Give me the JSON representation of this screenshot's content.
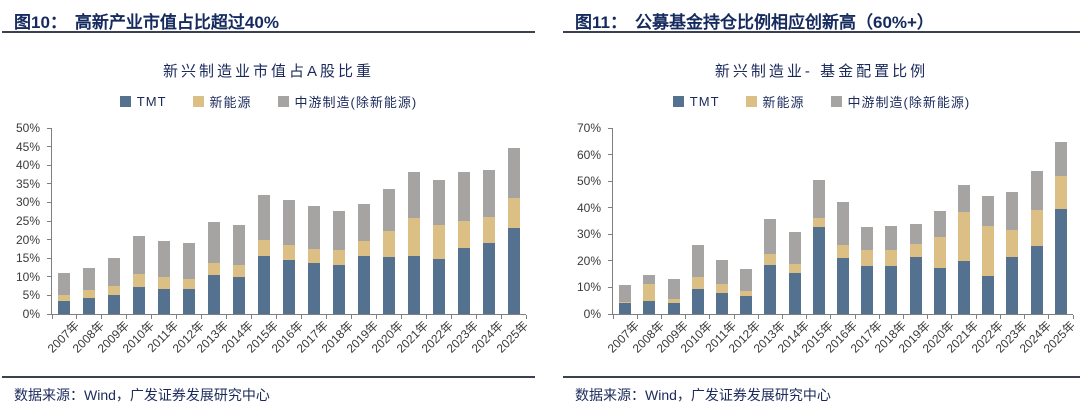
{
  "panels": [
    {
      "label": "图10：",
      "title": "高新产业市值占比超过40%"
    },
    {
      "label": "图11：",
      "title": "公募基金持仓比例相应创新高（60%+）"
    }
  ],
  "footer": {
    "source_text": "数据来源：Wind，广发证券发展研究中心"
  },
  "colors": {
    "tmt": "#54718F",
    "new_energy": "#DCBF85",
    "midstream": "#A5A4A3",
    "axis": "#7F7F7F",
    "navy_text": "#1B2A5B"
  },
  "chart_data": [
    {
      "type": "bar",
      "stacked": true,
      "title": "新兴制造业市值占A股比重",
      "legend_position": "top",
      "grid": false,
      "ylim": [
        0,
        50
      ],
      "ytick_step": 5,
      "categories": [
        "2007年",
        "2008年",
        "2009年",
        "2010年",
        "2011年",
        "2012年",
        "2013年",
        "2014年",
        "2015年",
        "2016年",
        "2017年",
        "2018年",
        "2019年",
        "2020年",
        "2021年",
        "2022年",
        "2023年",
        "2024年",
        "2025年"
      ],
      "series": [
        {
          "name": "TMT",
          "color": "#54718F",
          "values": [
            3.6,
            4.4,
            5.1,
            7.2,
            6.8,
            6.8,
            10.4,
            10.0,
            15.5,
            14.5,
            13.8,
            13.1,
            15.7,
            15.3,
            15.7,
            14.7,
            17.8,
            19.1,
            23.0
          ]
        },
        {
          "name": "新能源",
          "color": "#DCBF85",
          "values": [
            1.6,
            2.1,
            2.3,
            3.5,
            3.1,
            2.7,
            3.4,
            3.1,
            4.3,
            4.0,
            3.7,
            4.0,
            4.0,
            6.9,
            10.0,
            9.2,
            7.2,
            6.9,
            8.2
          ]
        },
        {
          "name": "中游制造(除新能源)",
          "color": "#A5A4A3",
          "values": [
            5.7,
            5.9,
            7.6,
            10.2,
            9.6,
            9.5,
            11.0,
            10.9,
            12.2,
            12.2,
            11.5,
            10.6,
            10.0,
            11.3,
            12.4,
            12.2,
            13.2,
            12.6,
            13.4
          ]
        }
      ]
    },
    {
      "type": "bar",
      "stacked": true,
      "title": "新兴制造业- 基金配置比例",
      "legend_position": "top",
      "grid": false,
      "ylim": [
        0,
        70
      ],
      "ytick_step": 10,
      "categories": [
        "2007年",
        "2008年",
        "2009年",
        "2010年",
        "2011年",
        "2012年",
        "2013年",
        "2014年",
        "2015年",
        "2016年",
        "2017年",
        "2018年",
        "2019年",
        "2020年",
        "2021年",
        "2022年",
        "2023年",
        "2024年",
        "2025年"
      ],
      "series": [
        {
          "name": "TMT",
          "color": "#54718F",
          "values": [
            4.0,
            4.8,
            4.0,
            9.6,
            7.9,
            6.7,
            18.5,
            15.5,
            32.6,
            20.9,
            18.0,
            18.1,
            21.3,
            17.2,
            19.9,
            14.3,
            21.6,
            25.6,
            39.6
          ]
        },
        {
          "name": "新能源",
          "color": "#DCBF85",
          "values": [
            0.7,
            6.4,
            1.5,
            4.5,
            3.3,
            1.9,
            4.0,
            3.2,
            3.5,
            4.9,
            6.0,
            6.0,
            5.0,
            11.8,
            18.4,
            18.8,
            9.9,
            13.5,
            12.2
          ]
        },
        {
          "name": "中游制造(除新能源)",
          "color": "#A5A4A3",
          "values": [
            6.4,
            3.5,
            7.5,
            11.9,
            9.2,
            8.3,
            13.2,
            12.2,
            14.5,
            16.5,
            8.8,
            9.1,
            7.7,
            9.9,
            10.4,
            11.3,
            14.6,
            14.6,
            13.0
          ]
        }
      ]
    }
  ]
}
